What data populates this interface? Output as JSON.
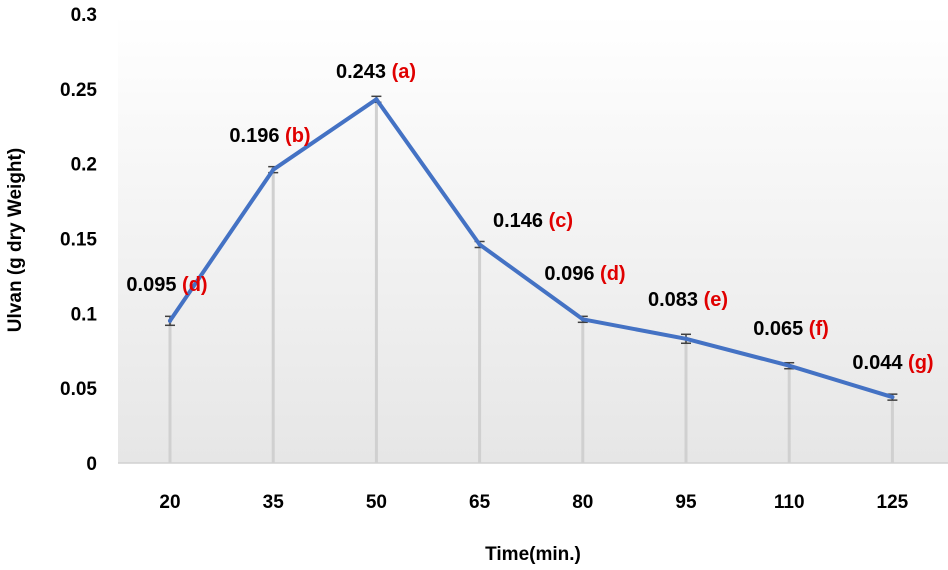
{
  "chart_data": {
    "type": "line",
    "xlabel": "Time(min.)",
    "ylabel": "Ulvan (g dry Weight)",
    "ylim": [
      0,
      0.3
    ],
    "yticks": [
      "0",
      "0.05",
      "0.1",
      "0.15",
      "0.2",
      "0.25",
      "0.3"
    ],
    "categories": [
      "20",
      "35",
      "50",
      "65",
      "80",
      "95",
      "110",
      "125"
    ],
    "series": [
      {
        "values": [
          0.095,
          0.196,
          0.243,
          0.146,
          0.096,
          0.083,
          0.065,
          0.044
        ],
        "error": [
          0.003,
          0.002,
          0.002,
          0.002,
          0.002,
          0.003,
          0.002,
          0.002
        ],
        "color": "#4472c4"
      }
    ],
    "value_labels": [
      "0.095",
      "0.196",
      "0.243",
      "0.146",
      "0.096",
      "0.083",
      "0.065",
      "0.044"
    ],
    "group_labels": [
      "(d)",
      "(b)",
      "(a)",
      "(c)",
      "(d)",
      "(e)",
      "(f)",
      "(g)"
    ],
    "label_color": "#e00000",
    "drop_line_color": "#d0d0d0",
    "grid": false,
    "background_gradient": true
  }
}
